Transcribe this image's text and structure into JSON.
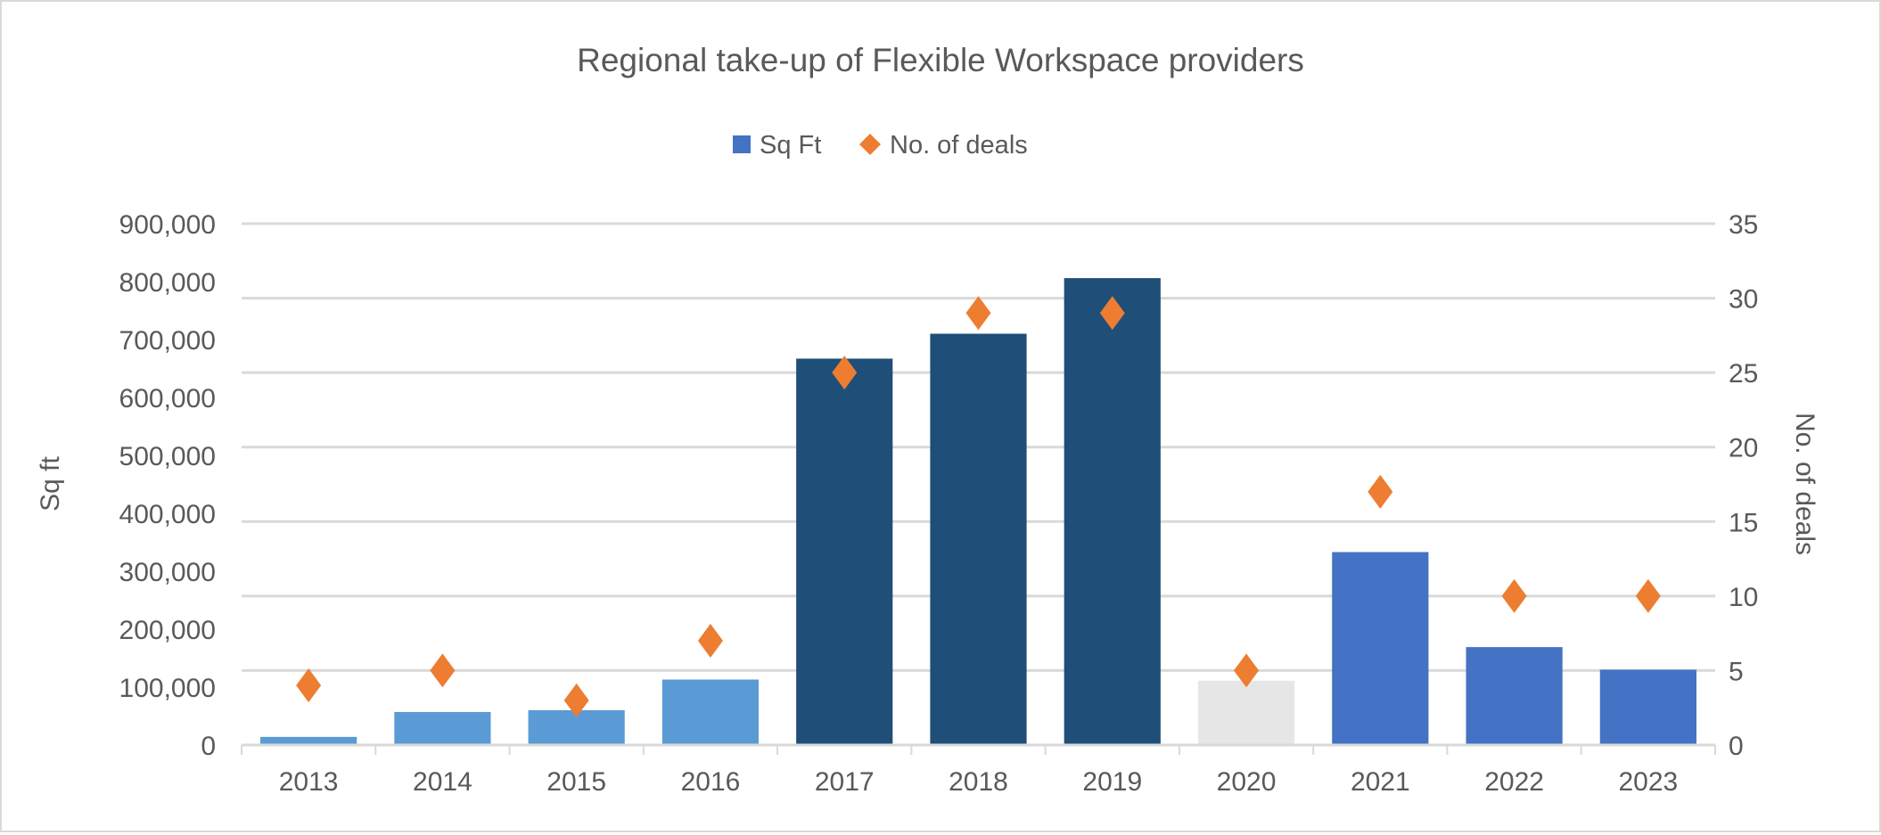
{
  "chart_data": {
    "type": "bar",
    "title": "Regional take-up of Flexible Workspace providers",
    "categories": [
      "2013",
      "2014",
      "2015",
      "2016",
      "2017",
      "2018",
      "2019",
      "2020",
      "2021",
      "2022",
      "2023"
    ],
    "series": [
      {
        "name": "Sq Ft",
        "type": "bar",
        "axis": "left",
        "values": [
          14000,
          57000,
          60000,
          113000,
          667000,
          710000,
          806000,
          111000,
          333000,
          169000,
          130000
        ],
        "bar_colors": [
          "#5B9BD5",
          "#5B9BD5",
          "#5B9BD5",
          "#5B9BD5",
          "#1F4E79",
          "#1F4E79",
          "#1F4E79",
          "#E7E6E6",
          "#4472C4",
          "#4472C4",
          "#4472C4"
        ],
        "legend_color": "#4472C4"
      },
      {
        "name": "No. of deals",
        "type": "scatter",
        "marker": "diamond",
        "axis": "right",
        "values": [
          4,
          5,
          3,
          7,
          25,
          29,
          29,
          5,
          17,
          10,
          10
        ],
        "color": "#ED7D31"
      }
    ],
    "ylabel": "Sq ft",
    "y2label": "No. of deals",
    "ylim": [
      0,
      900000
    ],
    "y2lim": [
      0,
      35
    ],
    "yticks": [
      "0",
      "100,000",
      "200,000",
      "300,000",
      "400,000",
      "500,000",
      "600,000",
      "700,000",
      "800,000",
      "900,000"
    ],
    "y2ticks": [
      "0",
      "5",
      "10",
      "15",
      "20",
      "25",
      "30",
      "35"
    ],
    "grid": true,
    "legend": "top"
  }
}
